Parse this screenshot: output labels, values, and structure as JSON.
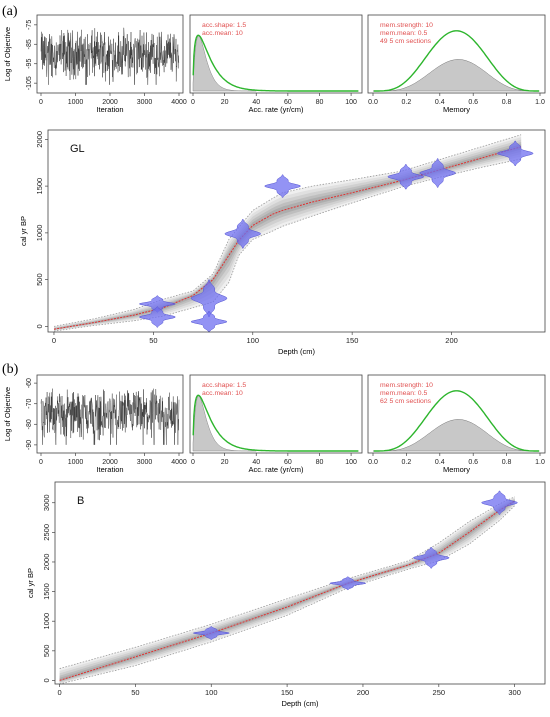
{
  "figure": {
    "panels": [
      {
        "label": "(a)",
        "iteration_plot": {
          "ylabel": "Log of Objective",
          "xlabel": "Iteration",
          "x_ticks": [
            "0",
            "1000",
            "2000",
            "3000",
            "4000"
          ],
          "y_ticks": [
            "-75",
            "-85",
            "-95",
            "-105"
          ],
          "xlim": [
            0,
            4000
          ],
          "ylim": [
            -108,
            -72
          ]
        },
        "acc_plot": {
          "xlabel": "Acc. rate (yr/cm)",
          "x_ticks": [
            "0",
            "20",
            "40",
            "60",
            "80",
            "100"
          ],
          "legend": [
            "acc.shape:  1.5",
            "acc.mean:  10"
          ],
          "xlim": [
            0,
            105
          ]
        },
        "mem_plot": {
          "xlabel": "Memory",
          "x_ticks": [
            "0.0",
            "0.2",
            "0.4",
            "0.6",
            "0.8",
            "1.0"
          ],
          "legend": [
            "mem.strength:  10",
            "mem.mean:  0.5",
            "49 5 cm sections"
          ],
          "xlim": [
            0,
            1
          ]
        },
        "age_model": {
          "site": "GL",
          "xlabel": "Depth (cm)",
          "ylabel": "cal yr BP",
          "x_ticks": [
            "0",
            "50",
            "100",
            "150",
            "200"
          ],
          "y_ticks": [
            "0",
            "500",
            "1000",
            "1500",
            "2000"
          ],
          "xlim": [
            -3,
            247
          ],
          "ylim": [
            -60,
            2100
          ]
        }
      },
      {
        "label": "(b)",
        "iteration_plot": {
          "ylabel": "Log of Objective",
          "xlabel": "Iteration",
          "x_ticks": [
            "0",
            "1000",
            "2000",
            "3000",
            "4000"
          ],
          "y_ticks": [
            "-60",
            "-70",
            "-80",
            "-90"
          ],
          "xlim": [
            0,
            4000
          ],
          "ylim": [
            -92,
            -58
          ]
        },
        "acc_plot": {
          "xlabel": "Acc. rate (yr/cm)",
          "x_ticks": [
            "0",
            "20",
            "40",
            "60",
            "80",
            "100"
          ],
          "legend": [
            "acc.shape:  1.5",
            "acc.mean:  10"
          ],
          "xlim": [
            0,
            105
          ]
        },
        "mem_plot": {
          "xlabel": "Memory",
          "x_ticks": [
            "0.0",
            "0.2",
            "0.4",
            "0.6",
            "0.8",
            "1.0"
          ],
          "legend": [
            "mem.strength:  10",
            "mem.mean:  0.5",
            "62 5 cm sections"
          ],
          "xlim": [
            0,
            1
          ]
        },
        "age_model": {
          "site": "B",
          "xlabel": "Depth (cm)",
          "ylabel": "cal yr BP",
          "x_ticks": [
            "0",
            "50",
            "100",
            "150",
            "200",
            "250",
            "300"
          ],
          "y_ticks": [
            "0",
            "500",
            "1000",
            "1500",
            "2000",
            "2500",
            "3000"
          ],
          "xlim": [
            -3,
            320
          ],
          "ylim": [
            -60,
            3350
          ]
        }
      }
    ]
  },
  "colors": {
    "trace": "#333333",
    "posterior_fill": "#c8c8c8",
    "prior": "#2db52d",
    "legend_text": "#e05050",
    "median": "#e03030",
    "envelope": "#9a9a9a",
    "dates": "#6f6ff0"
  },
  "chart_data": [
    {
      "type": "line",
      "panel": "a",
      "title": "GL",
      "xlabel": "Depth (cm)",
      "ylabel": "cal yr BP",
      "xlim": [
        -3,
        247
      ],
      "ylim": [
        -60,
        2100
      ],
      "median": {
        "x": [
          0,
          20,
          40,
          55,
          70,
          80,
          88,
          93,
          100,
          110,
          115,
          130,
          150,
          175,
          195,
          215,
          235
        ],
        "y": [
          -30,
          40,
          120,
          200,
          330,
          500,
          760,
          920,
          1080,
          1200,
          1240,
          1330,
          1430,
          1560,
          1680,
          1800,
          1920
        ]
      },
      "lower_95": {
        "x": [
          0,
          20,
          40,
          55,
          70,
          80,
          88,
          93,
          100,
          110,
          115,
          130,
          150,
          175,
          195,
          215,
          235
        ],
        "y": [
          -50,
          10,
          60,
          110,
          200,
          260,
          470,
          760,
          930,
          1020,
          1070,
          1180,
          1320,
          1490,
          1600,
          1700,
          1790
        ]
      },
      "upper_95": {
        "x": [
          0,
          20,
          40,
          55,
          70,
          80,
          88,
          93,
          100,
          110,
          115,
          130,
          150,
          175,
          195,
          215,
          235
        ],
        "y": [
          0,
          80,
          180,
          290,
          380,
          560,
          930,
          1060,
          1240,
          1370,
          1430,
          1500,
          1570,
          1660,
          1790,
          1920,
          2050
        ]
      },
      "dates": [
        {
          "depth": 52,
          "age": 240,
          "sd": 40
        },
        {
          "depth": 52,
          "age": 100,
          "sd": 50
        },
        {
          "depth": 78,
          "age": 300,
          "sd": 90
        },
        {
          "depth": 78,
          "age": 50,
          "sd": 50
        },
        {
          "depth": 95,
          "age": 990,
          "sd": 70
        },
        {
          "depth": 115,
          "age": 1500,
          "sd": 55
        },
        {
          "depth": 177,
          "age": 1600,
          "sd": 60
        },
        {
          "depth": 193,
          "age": 1640,
          "sd": 70
        },
        {
          "depth": 232,
          "age": 1850,
          "sd": 60
        }
      ]
    },
    {
      "type": "line",
      "panel": "b",
      "title": "B",
      "xlabel": "Depth (cm)",
      "ylabel": "cal yr BP",
      "xlim": [
        -3,
        320
      ],
      "ylim": [
        -60,
        3350
      ],
      "median": {
        "x": [
          0,
          50,
          100,
          150,
          190,
          230,
          250,
          270,
          290,
          300
        ],
        "y": [
          0,
          400,
          800,
          1240,
          1640,
          1950,
          2150,
          2500,
          2870,
          3030
        ]
      },
      "lower_95": {
        "x": [
          0,
          50,
          100,
          150,
          190,
          230,
          250,
          270,
          290,
          300
        ],
        "y": [
          -60,
          250,
          650,
          1100,
          1560,
          1880,
          2020,
          2300,
          2700,
          2950
        ]
      },
      "upper_95": {
        "x": [
          0,
          50,
          100,
          150,
          190,
          230,
          250,
          270,
          290,
          300
        ],
        "y": [
          200,
          560,
          950,
          1380,
          1720,
          2020,
          2320,
          2680,
          2980,
          3100
        ]
      },
      "dates": [
        {
          "depth": 100,
          "age": 800,
          "sd": 50
        },
        {
          "depth": 190,
          "age": 1640,
          "sd": 50
        },
        {
          "depth": 245,
          "age": 2070,
          "sd": 80
        },
        {
          "depth": 290,
          "age": 3000,
          "sd": 90
        }
      ]
    }
  ]
}
